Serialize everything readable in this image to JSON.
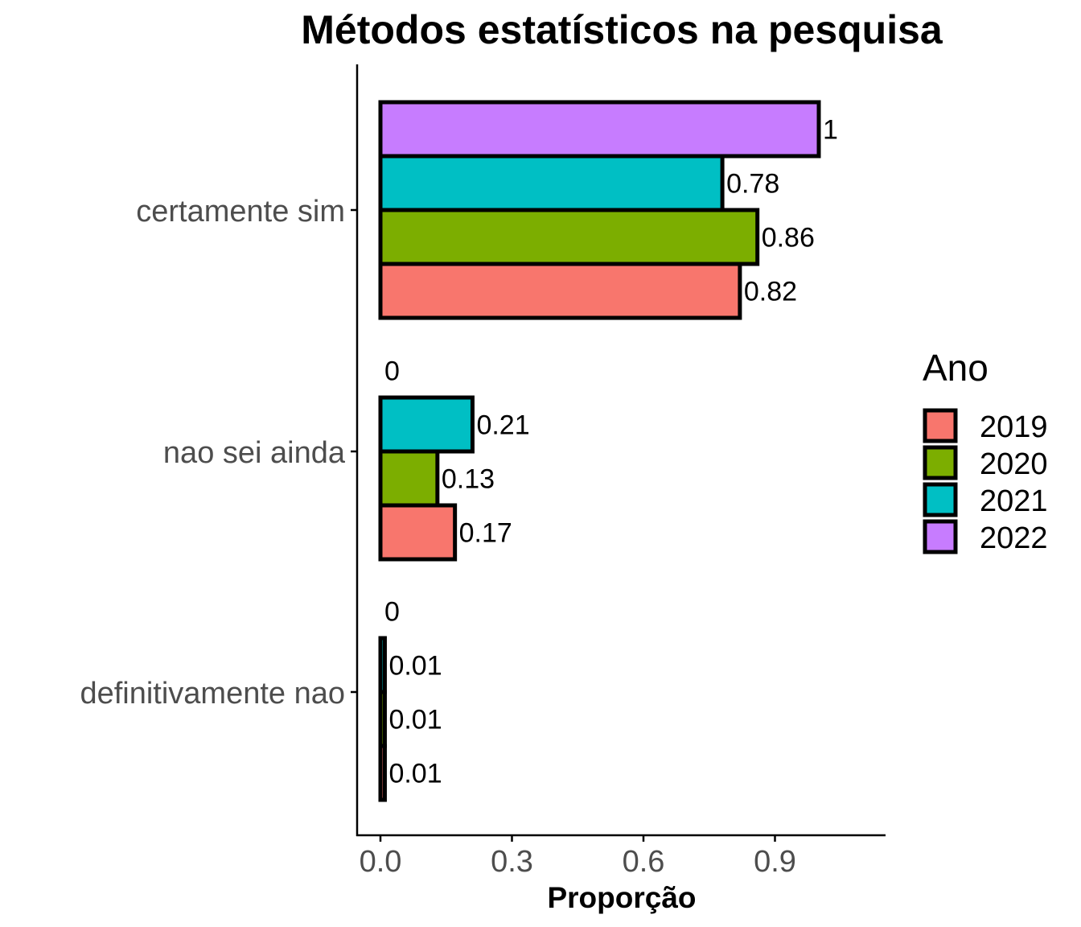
{
  "chart_data": {
    "type": "bar",
    "orientation": "horizontal",
    "title": "Métodos estatísticos na pesquisa",
    "xlabel": "Proporção",
    "ylabel": "",
    "categories": [
      "certamente sim",
      "nao sei ainda",
      "definitivamente nao"
    ],
    "series": [
      {
        "name": "2019",
        "color": "#F8766D",
        "values": [
          0.82,
          0.17,
          0.01
        ],
        "labels": [
          "0.82",
          "0.17",
          "0.01"
        ]
      },
      {
        "name": "2020",
        "color": "#7CAE00",
        "values": [
          0.86,
          0.13,
          0.01
        ],
        "labels": [
          "0.86",
          "0.13",
          "0.01"
        ]
      },
      {
        "name": "2021",
        "color": "#00BFC4",
        "values": [
          0.78,
          0.21,
          0.01
        ],
        "labels": [
          "0.78",
          "0.21",
          "0.01"
        ]
      },
      {
        "name": "2022",
        "color": "#C77CFF",
        "values": [
          1,
          0,
          0
        ],
        "labels": [
          "1",
          "0",
          "0"
        ]
      }
    ],
    "xlim": [
      0,
      1.15
    ],
    "xticks": [
      0.0,
      0.3,
      0.6,
      0.9
    ],
    "xtick_labels": [
      "0.0",
      "0.3",
      "0.6",
      "0.9"
    ],
    "legend": {
      "title": "Ano",
      "position": "right"
    },
    "grid": false
  }
}
